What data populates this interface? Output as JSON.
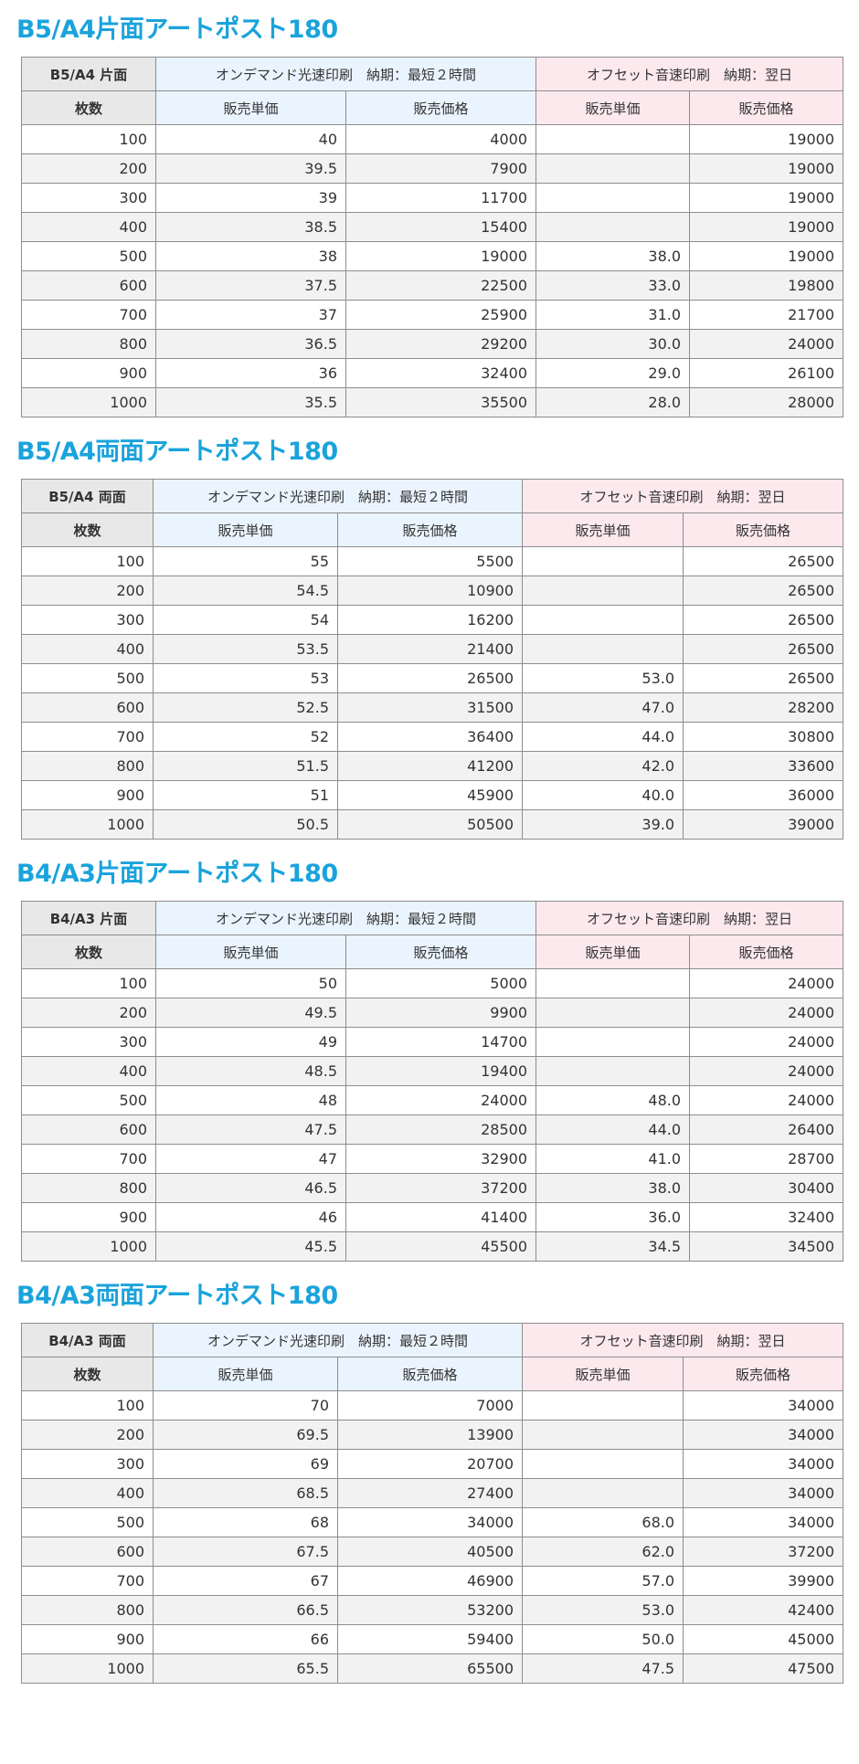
{
  "sections": [
    {
      "title": "B5/A4片面アートポスト180",
      "corner_label": "B5/A4 片面",
      "ondemand_header": "オンデマンド光速印刷　納期：最短２時間",
      "offset_header": "オフセット音速印刷　納期：翌日",
      "qty_label": "枚数",
      "unit_price_label": "販売単価",
      "price_label": "販売価格",
      "offset_unit_price_label": "販売単価",
      "offset_price_label": "販売価格",
      "rows": [
        {
          "qty": "100",
          "od_unit": "40",
          "od_price": "4000",
          "off_unit": "",
          "off_price": "19000"
        },
        {
          "qty": "200",
          "od_unit": "39.5",
          "od_price": "7900",
          "off_unit": "",
          "off_price": "19000"
        },
        {
          "qty": "300",
          "od_unit": "39",
          "od_price": "11700",
          "off_unit": "",
          "off_price": "19000"
        },
        {
          "qty": "400",
          "od_unit": "38.5",
          "od_price": "15400",
          "off_unit": "",
          "off_price": "19000"
        },
        {
          "qty": "500",
          "od_unit": "38",
          "od_price": "19000",
          "off_unit": "38.0",
          "off_price": "19000"
        },
        {
          "qty": "600",
          "od_unit": "37.5",
          "od_price": "22500",
          "off_unit": "33.0",
          "off_price": "19800"
        },
        {
          "qty": "700",
          "od_unit": "37",
          "od_price": "25900",
          "off_unit": "31.0",
          "off_price": "21700"
        },
        {
          "qty": "800",
          "od_unit": "36.5",
          "od_price": "29200",
          "off_unit": "30.0",
          "off_price": "24000"
        },
        {
          "qty": "900",
          "od_unit": "36",
          "od_price": "32400",
          "off_unit": "29.0",
          "off_price": "26100"
        },
        {
          "qty": "1000",
          "od_unit": "35.5",
          "od_price": "35500",
          "off_unit": "28.0",
          "off_price": "28000"
        }
      ]
    },
    {
      "title": "B5/A4両面アートポスト180",
      "corner_label": "B5/A4 両面",
      "ondemand_header": "オンデマンド光速印刷　納期：最短２時間",
      "offset_header": "オフセット音速印刷　納期：翌日",
      "qty_label": "枚数",
      "unit_price_label": "販売単価",
      "price_label": "販売価格",
      "offset_unit_price_label": "販売単価",
      "offset_price_label": "販売価格",
      "rows": [
        {
          "qty": "100",
          "od_unit": "55",
          "od_price": "5500",
          "off_unit": "",
          "off_price": "26500"
        },
        {
          "qty": "200",
          "od_unit": "54.5",
          "od_price": "10900",
          "off_unit": "",
          "off_price": "26500"
        },
        {
          "qty": "300",
          "od_unit": "54",
          "od_price": "16200",
          "off_unit": "",
          "off_price": "26500"
        },
        {
          "qty": "400",
          "od_unit": "53.5",
          "od_price": "21400",
          "off_unit": "",
          "off_price": "26500"
        },
        {
          "qty": "500",
          "od_unit": "53",
          "od_price": "26500",
          "off_unit": "53.0",
          "off_price": "26500"
        },
        {
          "qty": "600",
          "od_unit": "52.5",
          "od_price": "31500",
          "off_unit": "47.0",
          "off_price": "28200"
        },
        {
          "qty": "700",
          "od_unit": "52",
          "od_price": "36400",
          "off_unit": "44.0",
          "off_price": "30800"
        },
        {
          "qty": "800",
          "od_unit": "51.5",
          "od_price": "41200",
          "off_unit": "42.0",
          "off_price": "33600"
        },
        {
          "qty": "900",
          "od_unit": "51",
          "od_price": "45900",
          "off_unit": "40.0",
          "off_price": "36000"
        },
        {
          "qty": "1000",
          "od_unit": "50.5",
          "od_price": "50500",
          "off_unit": "39.0",
          "off_price": "39000"
        }
      ]
    },
    {
      "title": "B4/A3片面アートポスト180",
      "corner_label": "B4/A3 片面",
      "ondemand_header": "オンデマンド光速印刷　納期：最短２時間",
      "offset_header": "オフセット音速印刷　納期：翌日",
      "qty_label": "枚数",
      "unit_price_label": "販売単価",
      "price_label": "販売価格",
      "offset_unit_price_label": "販売単価",
      "offset_price_label": "販売価格",
      "rows": [
        {
          "qty": "100",
          "od_unit": "50",
          "od_price": "5000",
          "off_unit": "",
          "off_price": "24000"
        },
        {
          "qty": "200",
          "od_unit": "49.5",
          "od_price": "9900",
          "off_unit": "",
          "off_price": "24000"
        },
        {
          "qty": "300",
          "od_unit": "49",
          "od_price": "14700",
          "off_unit": "",
          "off_price": "24000"
        },
        {
          "qty": "400",
          "od_unit": "48.5",
          "od_price": "19400",
          "off_unit": "",
          "off_price": "24000"
        },
        {
          "qty": "500",
          "od_unit": "48",
          "od_price": "24000",
          "off_unit": "48.0",
          "off_price": "24000"
        },
        {
          "qty": "600",
          "od_unit": "47.5",
          "od_price": "28500",
          "off_unit": "44.0",
          "off_price": "26400"
        },
        {
          "qty": "700",
          "od_unit": "47",
          "od_price": "32900",
          "off_unit": "41.0",
          "off_price": "28700"
        },
        {
          "qty": "800",
          "od_unit": "46.5",
          "od_price": "37200",
          "off_unit": "38.0",
          "off_price": "30400"
        },
        {
          "qty": "900",
          "od_unit": "46",
          "od_price": "41400",
          "off_unit": "36.0",
          "off_price": "32400"
        },
        {
          "qty": "1000",
          "od_unit": "45.5",
          "od_price": "45500",
          "off_unit": "34.5",
          "off_price": "34500"
        }
      ]
    },
    {
      "title": "B4/A3両面アートポスト180",
      "corner_label": "B4/A3 両面",
      "ondemand_header": "オンデマンド光速印刷　納期：最短２時間",
      "offset_header": "オフセット音速印刷　納期：翌日",
      "qty_label": "枚数",
      "unit_price_label": "販売単価",
      "price_label": "販売価格",
      "offset_unit_price_label": "販売単価",
      "offset_price_label": "販売価格",
      "rows": [
        {
          "qty": "100",
          "od_unit": "70",
          "od_price": "7000",
          "off_unit": "",
          "off_price": "34000"
        },
        {
          "qty": "200",
          "od_unit": "69.5",
          "od_price": "13900",
          "off_unit": "",
          "off_price": "34000"
        },
        {
          "qty": "300",
          "od_unit": "69",
          "od_price": "20700",
          "off_unit": "",
          "off_price": "34000"
        },
        {
          "qty": "400",
          "od_unit": "68.5",
          "od_price": "27400",
          "off_unit": "",
          "off_price": "34000"
        },
        {
          "qty": "500",
          "od_unit": "68",
          "od_price": "34000",
          "off_unit": "68.0",
          "off_price": "34000"
        },
        {
          "qty": "600",
          "od_unit": "67.5",
          "od_price": "40500",
          "off_unit": "62.0",
          "off_price": "37200"
        },
        {
          "qty": "700",
          "od_unit": "67",
          "od_price": "46900",
          "off_unit": "57.0",
          "off_price": "39900"
        },
        {
          "qty": "800",
          "od_unit": "66.5",
          "od_price": "53200",
          "off_unit": "53.0",
          "off_price": "42400"
        },
        {
          "qty": "900",
          "od_unit": "66",
          "od_price": "59400",
          "off_unit": "50.0",
          "off_price": "45000"
        },
        {
          "qty": "1000",
          "od_unit": "65.5",
          "od_price": "65500",
          "off_unit": "47.5",
          "off_price": "47500"
        }
      ]
    }
  ],
  "colors": {
    "title": "#1aa3dc",
    "ondemand_header_bg": "#eaf4ff",
    "offset_header_bg": "#fce9ee",
    "corner_bg": "#e8e8e8",
    "band_row_bg": "#f2f2f2",
    "border": "#8d8d8d"
  }
}
